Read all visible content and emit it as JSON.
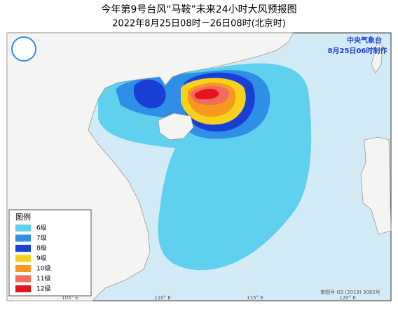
{
  "title": "今年第9号台风“马鞍”未来24小时大风预报图",
  "subtitle": "2022年8月25日08时－26日08时(北京时)",
  "agency": "中央气象台",
  "issued": "8月25日06时制作",
  "legend": {
    "title": "图例",
    "items": [
      {
        "label": "6级",
        "color": "#5fd0ee"
      },
      {
        "label": "7级",
        "color": "#2e8fe6"
      },
      {
        "label": "8级",
        "color": "#1a3fd6"
      },
      {
        "label": "9级",
        "color": "#f7d21c"
      },
      {
        "label": "10级",
        "color": "#f6991f"
      },
      {
        "label": "11级",
        "color": "#f26b5e"
      },
      {
        "label": "12级",
        "color": "#e6141c"
      }
    ]
  },
  "lon_labels": [
    "105° E",
    "110° E",
    "115° E",
    "120° E"
  ],
  "credit": "审图号 GS (2019) 3082号"
}
